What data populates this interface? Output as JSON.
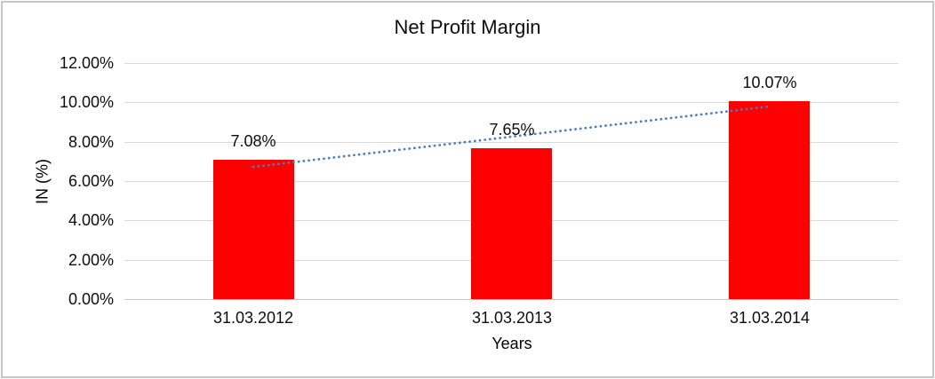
{
  "chart_data": {
    "type": "bar",
    "title": "Net Profit Margin",
    "categories": [
      "31.03.2012",
      "31.03.2013",
      "31.03.2014"
    ],
    "values": [
      7.08,
      7.65,
      10.07
    ],
    "data_labels": [
      "7.08%",
      "7.65%",
      "10.07%"
    ],
    "xlabel": "Years",
    "ylabel": "IN (%)",
    "ylim": [
      0,
      12
    ],
    "y_tick_values": [
      0,
      2,
      4,
      6,
      8,
      10,
      12
    ],
    "y_tick_labels": [
      "0.00%",
      "2.00%",
      "4.00%",
      "6.00%",
      "8.00%",
      "10.00%",
      "12.00%"
    ],
    "grid": true,
    "legend": false,
    "bar_color": "#ff0000",
    "gridline_color": "#d9d9d9",
    "trendline": {
      "type": "linear",
      "style": "dotted",
      "color": "#4a7ebb",
      "start_value": 6.72,
      "end_value": 9.79
    }
  }
}
